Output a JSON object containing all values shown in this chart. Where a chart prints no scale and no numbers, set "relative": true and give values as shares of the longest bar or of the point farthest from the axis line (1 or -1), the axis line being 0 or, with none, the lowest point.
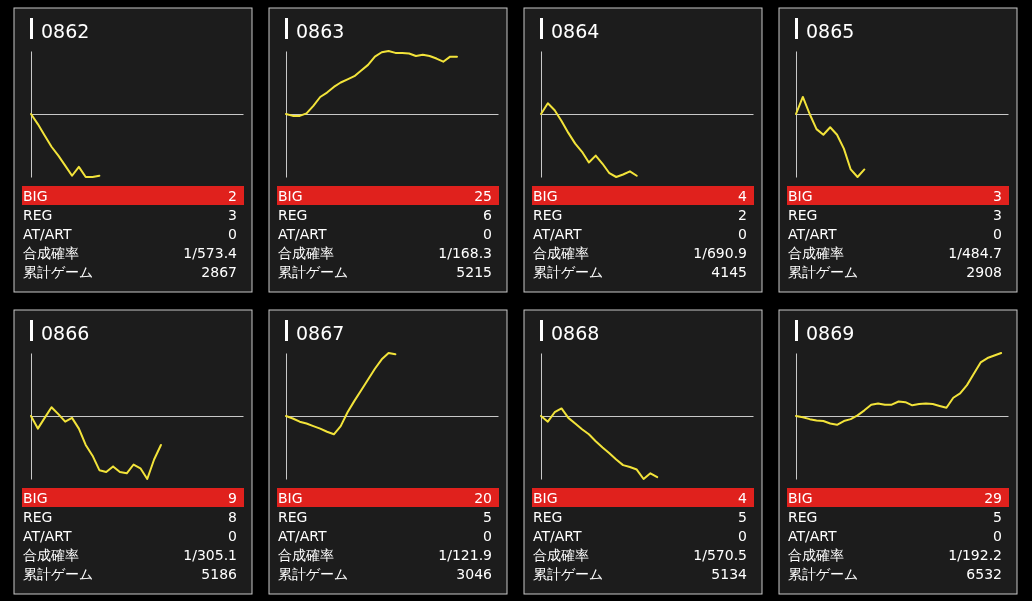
{
  "chart_data": [
    {
      "type": "line",
      "title": "0862",
      "relative": true,
      "color": "#f2e33a",
      "categories": [
        null,
        null,
        null,
        null,
        null,
        null,
        null,
        null,
        null,
        null,
        null,
        null,
        null,
        null,
        null,
        null,
        null,
        null,
        null,
        null,
        null,
        null,
        null,
        null,
        null,
        null,
        null,
        null,
        null,
        null,
        null,
        null
      ],
      "values": [
        0,
        -0.16,
        -0.34,
        -0.52,
        -0.66,
        -0.82,
        -0.98,
        -0.84,
        -1,
        -1,
        -0.98,
        null,
        null,
        null,
        null,
        null,
        null,
        null,
        null,
        null,
        null,
        null,
        null,
        null,
        null,
        null,
        null,
        null,
        null,
        null,
        null,
        null
      ],
      "annotations": [
        "BIG",
        "2",
        "REG",
        "3",
        "AT/ART",
        "0",
        "合成確率",
        "1/573.4",
        "累計ゲーム",
        "2867"
      ]
    },
    {
      "type": "line",
      "title": "0863",
      "relative": true,
      "color": "#f2e33a",
      "categories": [
        null,
        null,
        null,
        null,
        null,
        null,
        null,
        null,
        null,
        null,
        null,
        null,
        null,
        null,
        null,
        null,
        null,
        null,
        null,
        null,
        null,
        null,
        null,
        null,
        null,
        null,
        null,
        null,
        null,
        null,
        null,
        null
      ],
      "values": [
        0,
        -0.03,
        -0.03,
        0.01,
        0.13,
        0.27,
        0.34,
        0.43,
        0.5,
        0.55,
        0.6,
        0.69,
        0.78,
        0.91,
        0.98,
        1,
        0.97,
        0.97,
        0.96,
        0.92,
        0.94,
        0.92,
        0.88,
        0.83,
        0.91,
        0.91,
        null,
        null,
        null,
        null,
        null,
        null
      ],
      "annotations": [
        "BIG",
        "25",
        "REG",
        "6",
        "AT/ART",
        "0",
        "合成確率",
        "1/168.3",
        "累計ゲーム",
        "5215"
      ]
    },
    {
      "type": "line",
      "title": "0864",
      "relative": true,
      "color": "#f2e33a",
      "categories": [
        null,
        null,
        null,
        null,
        null,
        null,
        null,
        null,
        null,
        null,
        null,
        null,
        null,
        null,
        null,
        null,
        null,
        null,
        null,
        null,
        null,
        null,
        null,
        null,
        null,
        null,
        null,
        null,
        null,
        null,
        null,
        null
      ],
      "values": [
        0,
        0.17,
        0.06,
        -0.11,
        -0.3,
        -0.47,
        -0.6,
        -0.77,
        -0.66,
        -0.79,
        -0.94,
        -1,
        -0.96,
        -0.91,
        -0.98,
        null,
        null,
        null,
        null,
        null,
        null,
        null,
        null,
        null,
        null,
        null,
        null,
        null,
        null,
        null,
        null,
        null
      ],
      "annotations": [
        "BIG",
        "4",
        "REG",
        "2",
        "AT/ART",
        "0",
        "合成確率",
        "1/690.9",
        "累計ゲーム",
        "4145"
      ]
    },
    {
      "type": "line",
      "title": "0865",
      "relative": true,
      "color": "#f2e33a",
      "categories": [
        null,
        null,
        null,
        null,
        null,
        null,
        null,
        null,
        null,
        null,
        null,
        null,
        null,
        null,
        null,
        null,
        null,
        null,
        null,
        null,
        null,
        null,
        null,
        null,
        null,
        null,
        null,
        null,
        null,
        null,
        null,
        null
      ],
      "values": [
        0,
        0.27,
        0,
        -0.24,
        -0.33,
        -0.21,
        -0.33,
        -0.55,
        -0.88,
        -1,
        -0.88,
        null,
        null,
        null,
        null,
        null,
        null,
        null,
        null,
        null,
        null,
        null,
        null,
        null,
        null,
        null,
        null,
        null,
        null,
        null,
        null,
        null
      ],
      "annotations": [
        "BIG",
        "3",
        "REG",
        "3",
        "AT/ART",
        "0",
        "合成確率",
        "1/484.7",
        "累計ゲーム",
        "2908"
      ]
    },
    {
      "type": "line",
      "title": "0866",
      "relative": true,
      "color": "#f2e33a",
      "categories": [
        null,
        null,
        null,
        null,
        null,
        null,
        null,
        null,
        null,
        null,
        null,
        null,
        null,
        null,
        null,
        null,
        null,
        null,
        null,
        null,
        null,
        null,
        null,
        null,
        null,
        null,
        null,
        null,
        null,
        null,
        null,
        null
      ],
      "values": [
        0,
        -0.2,
        -0.03,
        0.14,
        0.03,
        -0.09,
        -0.03,
        -0.2,
        -0.46,
        -0.63,
        -0.86,
        -0.89,
        -0.8,
        -0.89,
        -0.91,
        -0.77,
        -0.83,
        -1,
        -0.69,
        -0.46,
        null,
        null,
        null,
        null,
        null,
        null,
        null,
        null,
        null,
        null,
        null,
        null
      ],
      "annotations": [
        "BIG",
        "9",
        "REG",
        "8",
        "AT/ART",
        "0",
        "合成確率",
        "1/305.1",
        "累計ゲーム",
        "5186"
      ]
    },
    {
      "type": "line",
      "title": "0867",
      "relative": true,
      "color": "#f2e33a",
      "categories": [
        null,
        null,
        null,
        null,
        null,
        null,
        null,
        null,
        null,
        null,
        null,
        null,
        null,
        null,
        null,
        null,
        null,
        null,
        null,
        null,
        null,
        null,
        null,
        null,
        null,
        null,
        null,
        null,
        null,
        null,
        null,
        null
      ],
      "values": [
        0,
        -0.04,
        -0.09,
        -0.12,
        -0.16,
        -0.2,
        -0.25,
        -0.29,
        -0.16,
        0.06,
        0.24,
        0.41,
        0.58,
        0.75,
        0.9,
        1,
        0.98,
        null,
        null,
        null,
        null,
        null,
        null,
        null,
        null,
        null,
        null,
        null,
        null,
        null,
        null,
        null
      ],
      "annotations": [
        "BIG",
        "20",
        "REG",
        "5",
        "AT/ART",
        "0",
        "合成確率",
        "1/121.9",
        "累計ゲーム",
        "3046"
      ]
    },
    {
      "type": "line",
      "title": "0868",
      "relative": true,
      "color": "#f2e33a",
      "categories": [
        null,
        null,
        null,
        null,
        null,
        null,
        null,
        null,
        null,
        null,
        null,
        null,
        null,
        null,
        null,
        null,
        null,
        null,
        null,
        null,
        null,
        null,
        null,
        null,
        null,
        null,
        null,
        null,
        null,
        null,
        null,
        null
      ],
      "values": [
        0,
        -0.09,
        0.06,
        0.12,
        -0.03,
        -0.12,
        -0.21,
        -0.29,
        -0.4,
        -0.5,
        -0.59,
        -0.69,
        -0.78,
        -0.81,
        -0.85,
        -1,
        -0.91,
        -0.97,
        null,
        null,
        null,
        null,
        null,
        null,
        null,
        null,
        null,
        null,
        null,
        null,
        null,
        null
      ],
      "annotations": [
        "BIG",
        "4",
        "REG",
        "5",
        "AT/ART",
        "0",
        "合成確率",
        "1/570.5",
        "累計ゲーム",
        "5134"
      ]
    },
    {
      "type": "line",
      "title": "0869",
      "relative": true,
      "color": "#f2e33a",
      "categories": [
        null,
        null,
        null,
        null,
        null,
        null,
        null,
        null,
        null,
        null,
        null,
        null,
        null,
        null,
        null,
        null,
        null,
        null,
        null,
        null,
        null,
        null,
        null,
        null,
        null,
        null,
        null,
        null,
        null,
        null,
        null,
        null
      ],
      "values": [
        0,
        -0.02,
        -0.05,
        -0.07,
        -0.08,
        -0.12,
        -0.14,
        -0.08,
        -0.05,
        0.01,
        0.09,
        0.18,
        0.2,
        0.18,
        0.18,
        0.23,
        0.22,
        0.17,
        0.19,
        0.2,
        0.19,
        0.16,
        0.13,
        0.29,
        0.36,
        0.49,
        0.67,
        0.85,
        0.92,
        0.96,
        1,
        null
      ],
      "annotations": [
        "BIG",
        "29",
        "REG",
        "5",
        "AT/ART",
        "0",
        "合成確率",
        "1/192.2",
        "累計ゲーム",
        "6532"
      ]
    }
  ]
}
